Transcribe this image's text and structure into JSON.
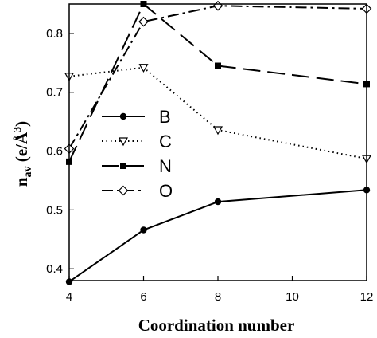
{
  "chart_data": {
    "type": "line",
    "xlabel": "Coordination number",
    "ylabel": {
      "main": "n",
      "sub": "av",
      "unit": " (e/Å",
      "sup": "3",
      "close": ")"
    },
    "xlim": [
      4,
      12
    ],
    "ylim": [
      0.38,
      0.85
    ],
    "x_ticks": [
      4,
      6,
      8,
      10,
      12
    ],
    "y_ticks": [
      0.4,
      0.5,
      0.6,
      0.7,
      0.8
    ],
    "grid": false,
    "legend_position": "left",
    "series": [
      {
        "name": "B",
        "marker": "filled-circle",
        "dash": "solid",
        "x": [
          4,
          6,
          8,
          12
        ],
        "y": [
          0.378,
          0.466,
          0.514,
          0.534
        ]
      },
      {
        "name": "C",
        "marker": "open-triangle-down",
        "dash": "dotted",
        "x": [
          4,
          6,
          8,
          12
        ],
        "y": [
          0.727,
          0.742,
          0.636,
          0.587
        ]
      },
      {
        "name": "N",
        "marker": "filled-square",
        "dash": "long-dash",
        "x": [
          4,
          6,
          8,
          12
        ],
        "y": [
          0.582,
          0.85,
          0.745,
          0.714
        ]
      },
      {
        "name": "O",
        "marker": "open-diamond",
        "dash": "dash-dot",
        "x": [
          4,
          6,
          8,
          12
        ],
        "y": [
          0.604,
          0.82,
          0.847,
          0.842
        ]
      }
    ]
  }
}
